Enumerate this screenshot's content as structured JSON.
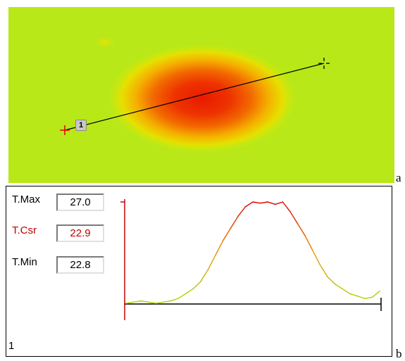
{
  "panel_a": {
    "letter": "a",
    "marker_label": "1"
  },
  "panel_b": {
    "letter": "b",
    "stats": {
      "tmax": {
        "label": "T.Max",
        "value": "27.0"
      },
      "tcsr": {
        "label": "T.Csr",
        "value": "22.9"
      },
      "tmin": {
        "label": "T.Min",
        "value": "22.8"
      }
    },
    "page_number": "1",
    "colors": {
      "cursor": "#cc0000",
      "axis": "#000000",
      "hot": "#e00000",
      "cool": "#a8d800"
    }
  },
  "chart_data": {
    "type": "line",
    "title": "",
    "xlabel": "",
    "ylabel": "",
    "ylim": [
      22.8,
      27.0
    ],
    "values": [
      22.8,
      22.85,
      22.9,
      22.85,
      22.8,
      22.85,
      22.9,
      23.0,
      23.2,
      23.4,
      23.7,
      24.2,
      24.8,
      25.4,
      25.9,
      26.4,
      26.8,
      27.0,
      26.95,
      27.0,
      26.9,
      27.0,
      26.6,
      26.1,
      25.6,
      25.0,
      24.4,
      23.9,
      23.6,
      23.4,
      23.2,
      23.1,
      23.0,
      23.05,
      23.3
    ]
  }
}
